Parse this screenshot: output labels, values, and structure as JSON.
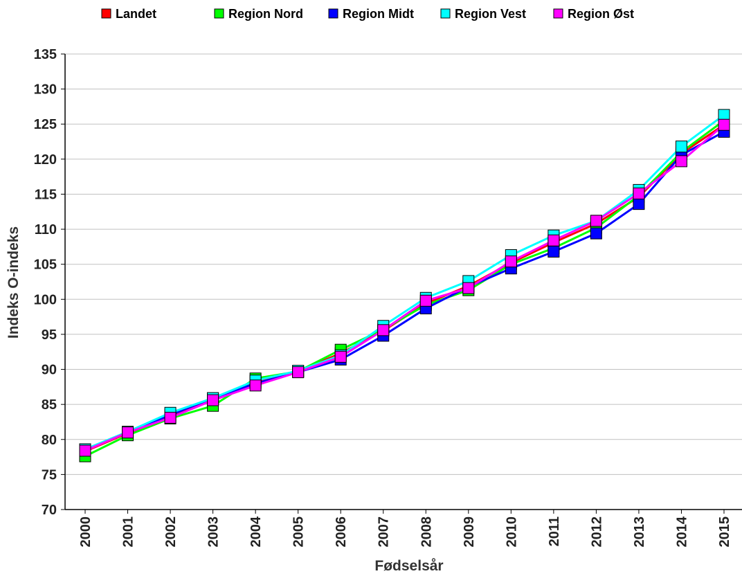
{
  "chart_data": {
    "type": "line",
    "title": "",
    "xlabel": "Fødselsår",
    "ylabel": "Indeks O-indeks",
    "ylim": [
      70,
      135
    ],
    "yticks": [
      70,
      75,
      80,
      85,
      90,
      95,
      100,
      105,
      110,
      115,
      120,
      125,
      130,
      135
    ],
    "categories": [
      "2000",
      "2001",
      "2002",
      "2003",
      "2004",
      "2005",
      "2006",
      "2007",
      "2008",
      "2009",
      "2010",
      "2011",
      "2012",
      "2013",
      "2014",
      "2015"
    ],
    "grid": true,
    "legend_position": "top",
    "series": [
      {
        "name": "Landet",
        "color": "#ff0000",
        "values": [
          78.3,
          80.9,
          83.2,
          85.7,
          88.2,
          89.7,
          92.3,
          95.5,
          99.4,
          101.9,
          105.2,
          108.1,
          110.8,
          114.6,
          120.8,
          124.9
        ]
      },
      {
        "name": "Region Nord",
        "color": "#00ff00",
        "values": [
          77.6,
          80.6,
          83.0,
          84.8,
          88.7,
          89.7,
          92.8,
          95.7,
          99.2,
          101.3,
          105.0,
          107.3,
          110.2,
          114.8,
          121.0,
          125.5
        ]
      },
      {
        "name": "Region Midt",
        "color": "#0000ff",
        "values": [
          78.5,
          81.0,
          83.5,
          85.9,
          88.0,
          89.6,
          91.4,
          94.8,
          98.7,
          101.8,
          104.4,
          106.8,
          109.4,
          113.6,
          120.6,
          123.9
        ]
      },
      {
        "name": "Region Vest",
        "color": "#00ffff",
        "values": [
          78.6,
          81.1,
          83.8,
          85.9,
          88.4,
          89.8,
          92.0,
          96.2,
          100.2,
          102.6,
          106.3,
          109.1,
          111.2,
          115.6,
          121.8,
          126.3
        ]
      },
      {
        "name": "Region Øst",
        "color": "#ff00ff",
        "values": [
          78.4,
          81.0,
          83.1,
          85.6,
          87.7,
          89.6,
          91.8,
          95.6,
          99.8,
          101.6,
          105.4,
          108.4,
          111.2,
          115.1,
          119.7,
          124.9
        ]
      }
    ]
  }
}
